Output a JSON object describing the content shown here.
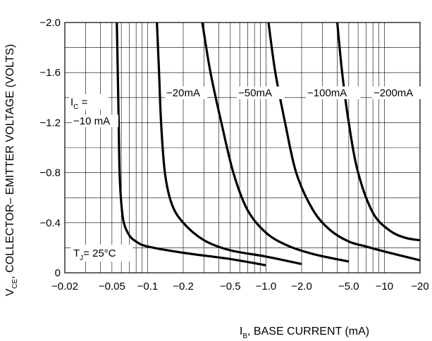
{
  "chart_data": {
    "type": "line",
    "x_scale": "log",
    "grid": true,
    "xlabel": {
      "prefix": "I",
      "sub": "B",
      "text": ", BASE CURRENT (mA)"
    },
    "ylabel": {
      "prefix": "V",
      "sub": "CE",
      "text": ", COLLECTOR– EMITTER VOLTAGE (VOLTS)"
    },
    "xlim": [
      -0.02,
      -20
    ],
    "ylim": [
      0,
      -2.0
    ],
    "x_ticks": [
      {
        "value": -0.02,
        "label": "−0.02"
      },
      {
        "value": -0.05,
        "label": "−0.05"
      },
      {
        "value": -0.1,
        "label": "−0.1"
      },
      {
        "value": -0.2,
        "label": "−0.2"
      },
      {
        "value": -0.5,
        "label": "−0.5"
      },
      {
        "value": -1.0,
        "label": "−1.0"
      },
      {
        "value": -2.0,
        "label": "−2.0"
      },
      {
        "value": -5.0,
        "label": "−5.0"
      },
      {
        "value": -10,
        "label": "−10"
      },
      {
        "value": -20,
        "label": "−20"
      }
    ],
    "y_ticks": [
      {
        "value": 0,
        "label": "0"
      },
      {
        "value": -0.4,
        "label": "−0.4"
      },
      {
        "value": -0.8,
        "label": "−0.8"
      },
      {
        "value": -1.2,
        "label": "−1.2"
      },
      {
        "value": -1.6,
        "label": "−1.6"
      },
      {
        "value": -2.0,
        "label": "−2.0"
      }
    ],
    "series": [
      {
        "name": "−10 mA",
        "points": [
          [
            -0.055,
            -2.0
          ],
          [
            -0.056,
            -1.6
          ],
          [
            -0.057,
            -1.2
          ],
          [
            -0.058,
            -0.8
          ],
          [
            -0.06,
            -0.55
          ],
          [
            -0.063,
            -0.4
          ],
          [
            -0.07,
            -0.3
          ],
          [
            -0.08,
            -0.25
          ],
          [
            -0.1,
            -0.21
          ],
          [
            -0.2,
            -0.16
          ],
          [
            -0.5,
            -0.11
          ],
          [
            -1.0,
            -0.06
          ]
        ]
      },
      {
        "name": "−20mA",
        "points": [
          [
            -0.12,
            -2.0
          ],
          [
            -0.125,
            -1.6
          ],
          [
            -0.13,
            -1.2
          ],
          [
            -0.14,
            -0.8
          ],
          [
            -0.16,
            -0.55
          ],
          [
            -0.2,
            -0.4
          ],
          [
            -0.3,
            -0.26
          ],
          [
            -0.5,
            -0.18
          ],
          [
            -1.0,
            -0.13
          ],
          [
            -2.0,
            -0.07
          ]
        ]
      },
      {
        "name": "−50mA",
        "points": [
          [
            -0.29,
            -2.0
          ],
          [
            -0.34,
            -1.6
          ],
          [
            -0.42,
            -1.2
          ],
          [
            -0.53,
            -0.8
          ],
          [
            -0.7,
            -0.5
          ],
          [
            -1.0,
            -0.32
          ],
          [
            -1.5,
            -0.22
          ],
          [
            -2.5,
            -0.15
          ],
          [
            -5.0,
            -0.09
          ]
        ]
      },
      {
        "name": "−100mA",
        "points": [
          [
            -1.05,
            -2.0
          ],
          [
            -1.2,
            -1.6
          ],
          [
            -1.45,
            -1.2
          ],
          [
            -1.8,
            -0.8
          ],
          [
            -2.5,
            -0.5
          ],
          [
            -3.5,
            -0.34
          ],
          [
            -5.0,
            -0.25
          ],
          [
            -7,
            -0.21
          ],
          [
            -10,
            -0.17
          ],
          [
            -20,
            -0.1
          ]
        ]
      },
      {
        "name": "−200mA",
        "points": [
          [
            -4.0,
            -2.0
          ],
          [
            -4.4,
            -1.6
          ],
          [
            -5.0,
            -1.2
          ],
          [
            -6.0,
            -0.8
          ],
          [
            -8.0,
            -0.48
          ],
          [
            -11,
            -0.34
          ],
          [
            -15,
            -0.28
          ],
          [
            -20,
            -0.26
          ]
        ]
      }
    ],
    "annotations": {
      "ic_prefix": "I",
      "ic_sub": "C",
      "ic_eq": " =",
      "tj_prefix": "T",
      "tj_sub": "J",
      "tj_text": "= 25°C"
    }
  }
}
